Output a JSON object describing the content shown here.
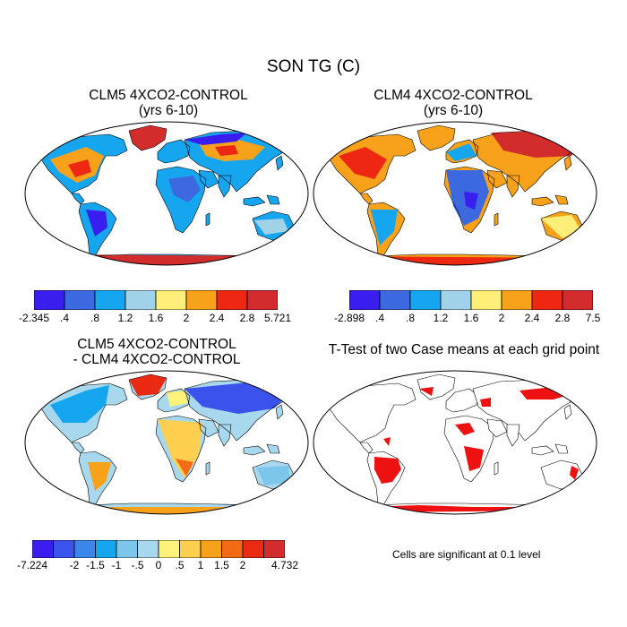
{
  "title": "SON TG (C)",
  "panels": [
    {
      "id": "clm5",
      "title_lines": [
        "CLM5 4XCO2-CONTROL",
        "(yrs 6-10)"
      ],
      "colorbar": {
        "colors": [
          "#3a1ef0",
          "#3c68e0",
          "#16a6ef",
          "#a0d2e8",
          "#ffef78",
          "#f7a21a",
          "#ee2712",
          "#d22c2c"
        ],
        "labels": [
          "-2.345",
          ".4",
          ".8",
          "1.2",
          "1.6",
          "2",
          "2.4",
          "2.8",
          "5.721"
        ]
      }
    },
    {
      "id": "clm4",
      "title_lines": [
        "CLM4 4XCO2-CONTROL",
        "(yrs 6-10)"
      ],
      "colorbar": {
        "colors": [
          "#3a1ef0",
          "#3c68e0",
          "#16a6ef",
          "#a0d2e8",
          "#ffef78",
          "#f7a21a",
          "#ee2712",
          "#d22c2c"
        ],
        "labels": [
          "-2.898",
          ".4",
          ".8",
          "1.2",
          "1.6",
          "2",
          "2.4",
          "2.8",
          "7.5"
        ]
      }
    },
    {
      "id": "diff",
      "title_lines": [
        "CLM5 4XCO2-CONTROL",
        "- CLM4 4XCO2-CONTROL"
      ],
      "colorbar": {
        "colors": [
          "#3a1ef0",
          "#3c52ec",
          "#3a86ea",
          "#16a6ef",
          "#7cc6ec",
          "#a8d8ee",
          "#fff27a",
          "#ffd050",
          "#f7a21a",
          "#f46a15",
          "#ea2a12",
          "#d22c2c"
        ],
        "labels": [
          "-7.224",
          "-2",
          "-1.5",
          "-1",
          "-.5",
          "0",
          ".5",
          "1",
          "1.5",
          "2",
          "4.732"
        ],
        "label_slots": [
          0,
          2,
          3,
          4,
          5,
          6,
          7,
          8,
          9,
          10,
          12
        ]
      }
    },
    {
      "id": "ttest",
      "title_lines": [
        "T-Test of two Case means at each grid point"
      ],
      "note": "Cells are significant at 0.1 level"
    }
  ],
  "icons": [
    "world-map-icon"
  ]
}
